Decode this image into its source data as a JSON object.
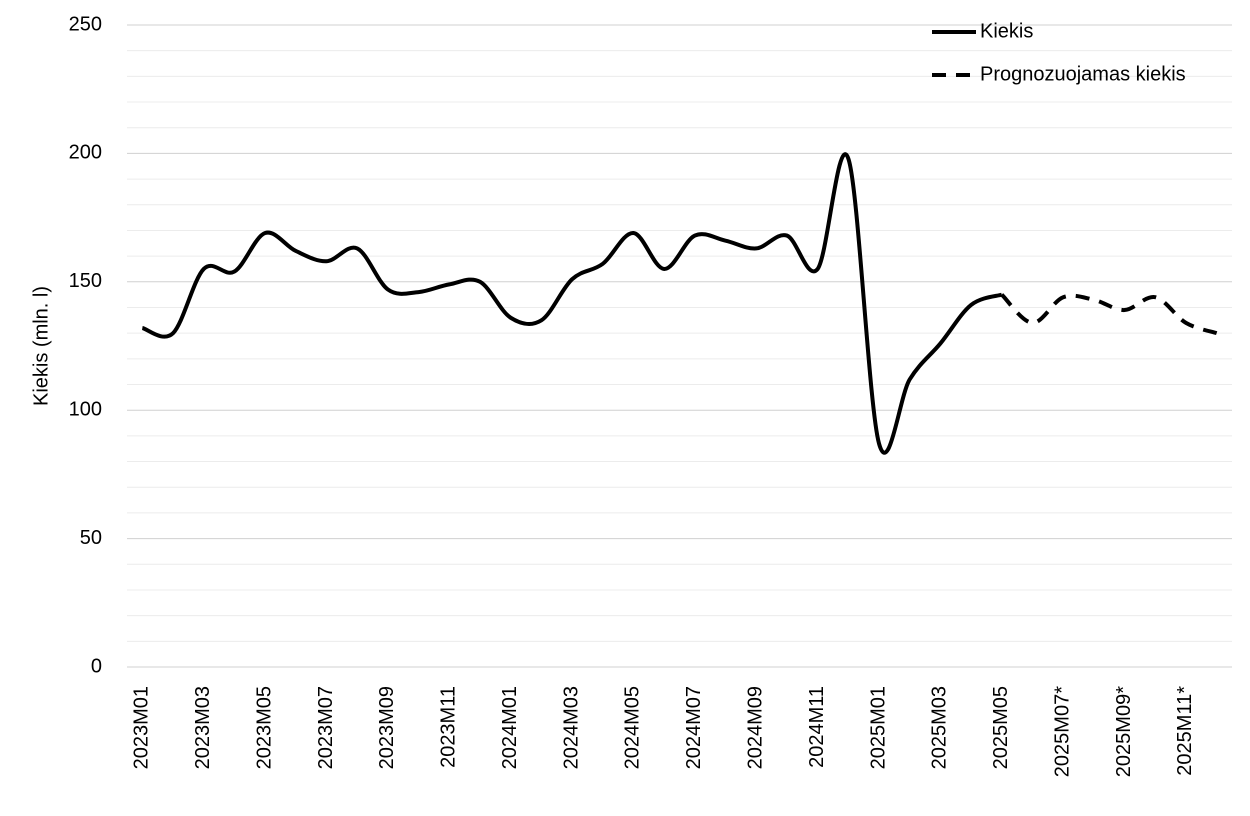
{
  "chart_data": {
    "type": "line",
    "y_label": "Kiekis (mln. l)",
    "categories": [
      "2023M01",
      null,
      "2023M03",
      null,
      "2023M05",
      null,
      "2023M07",
      null,
      "2023M09",
      null,
      "2023M11",
      null,
      "2024M01",
      null,
      "2024M03",
      null,
      "2024M05",
      null,
      "2024M07",
      null,
      "2024M09",
      null,
      "2024M11",
      null,
      "2025M01",
      null,
      "2025M03",
      null,
      "2025M05",
      null,
      "2025M07*",
      null,
      "2025M09*",
      null,
      "2025M11*",
      null
    ],
    "series": [
      {
        "name": "Kiekis",
        "color": "#000000",
        "dash": false,
        "values": [
          132,
          130,
          155,
          154,
          169,
          162,
          158,
          163,
          147,
          146,
          149,
          150,
          136,
          135,
          151,
          157,
          169,
          155,
          168,
          166,
          163,
          168,
          155,
          198,
          87,
          112,
          126,
          141,
          145,
          null,
          null,
          null,
          null,
          null,
          null,
          null
        ]
      },
      {
        "name": "Prognozuojamas kiekis",
        "color": "#000000",
        "dash": true,
        "values": [
          null,
          null,
          null,
          null,
          null,
          null,
          null,
          null,
          null,
          null,
          null,
          null,
          null,
          null,
          null,
          null,
          null,
          null,
          null,
          null,
          null,
          null,
          null,
          null,
          null,
          null,
          null,
          null,
          145,
          134,
          144,
          143,
          139,
          144,
          134,
          130
        ]
      }
    ],
    "ylim": [
      0,
      250
    ],
    "yticks": [
      0,
      50,
      100,
      150,
      200,
      250
    ],
    "grid": true,
    "legend": "top-right"
  }
}
